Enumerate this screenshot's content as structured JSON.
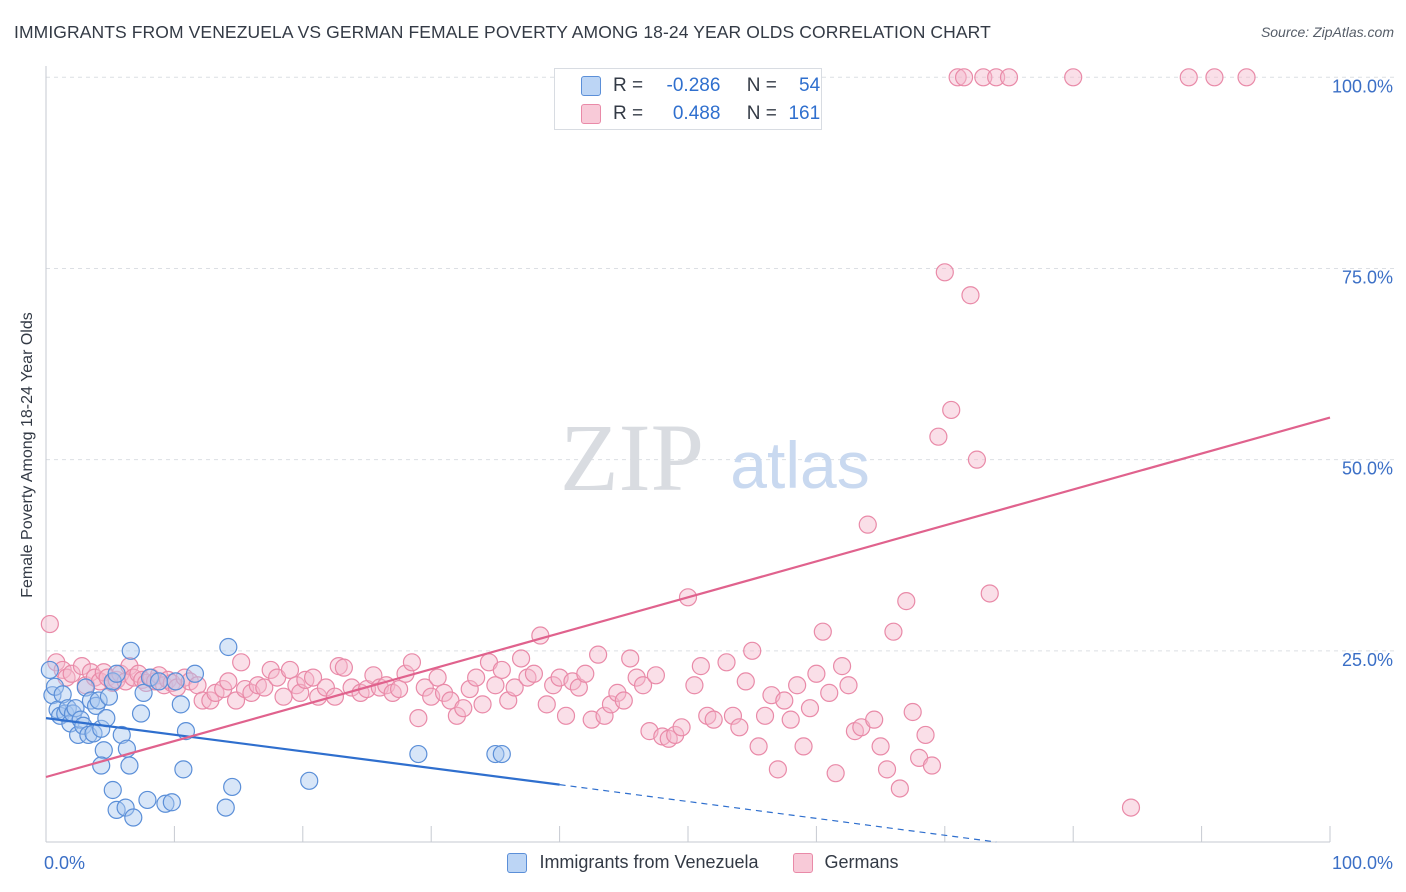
{
  "title": "IMMIGRANTS FROM VENEZUELA VS GERMAN FEMALE POVERTY AMONG 18-24 YEAR OLDS CORRELATION CHART",
  "source": "Source: ZipAtlas.com",
  "watermark": {
    "zip": "ZIP",
    "atlas": "atlas"
  },
  "colors": {
    "blue_fill": "#a9c8f0",
    "blue_stroke": "#5b8fd8",
    "blue_line": "#2f6fce",
    "pink_fill": "#f5b8cb",
    "pink_stroke": "#e98aa8",
    "pink_line": "#e0628d",
    "tick_label": "#3b6fc6",
    "grid": "#dcdfe4"
  },
  "legend": {
    "rows": [
      {
        "r_label": "R =",
        "r_value": "-0.286",
        "n_label": "N =",
        "n_value": "54"
      },
      {
        "r_label": "R =",
        "r_value": "0.488",
        "n_label": "N =",
        "n_value": "161"
      }
    ]
  },
  "chart_data": {
    "type": "scatter",
    "xlabel": "",
    "ylabel": "Female Poverty Among 18-24 Year Olds",
    "xlim": [
      0,
      100
    ],
    "ylim": [
      0,
      102
    ],
    "x_tick_labels": [
      "0.0%",
      "100.0%"
    ],
    "y_tick_labels": [
      "25.0%",
      "50.0%",
      "75.0%",
      "100.0%"
    ],
    "y_ticks": [
      25,
      50,
      75,
      100
    ],
    "grid": "horizontal dashed",
    "legend_position": "top-center",
    "series": [
      {
        "name": "Immigrants from Venezuela",
        "color": "#a9c8f0",
        "r": -0.286,
        "n": 54,
        "trend": {
          "x0": 0,
          "y0": 16.2,
          "x1": 40,
          "y1": 7.5,
          "dashed_to_x": 74,
          "dashed_to_y": 0
        },
        "points": [
          [
            0.3,
            22.5
          ],
          [
            0.5,
            19.2
          ],
          [
            0.7,
            20.3
          ],
          [
            0.9,
            17.3
          ],
          [
            1.1,
            16.5
          ],
          [
            1.3,
            19.3
          ],
          [
            1.5,
            16.8
          ],
          [
            1.7,
            17.5
          ],
          [
            1.9,
            15.5
          ],
          [
            2.1,
            16.8
          ],
          [
            2.3,
            17.5
          ],
          [
            2.5,
            14.0
          ],
          [
            2.7,
            16.0
          ],
          [
            2.9,
            15.2
          ],
          [
            3.1,
            20.2
          ],
          [
            3.3,
            14.0
          ],
          [
            3.5,
            18.5
          ],
          [
            3.7,
            14.2
          ],
          [
            3.9,
            17.8
          ],
          [
            4.1,
            18.5
          ],
          [
            4.3,
            14.8
          ],
          [
            4.5,
            12.0
          ],
          [
            4.3,
            10.0
          ],
          [
            4.7,
            16.2
          ],
          [
            4.9,
            19.0
          ],
          [
            5.2,
            21.0
          ],
          [
            5.5,
            22.0
          ],
          [
            5.2,
            6.8
          ],
          [
            5.5,
            4.2
          ],
          [
            5.9,
            14.0
          ],
          [
            6.2,
            4.5
          ],
          [
            6.3,
            12.2
          ],
          [
            6.5,
            10.0
          ],
          [
            6.6,
            25.0
          ],
          [
            6.8,
            3.2
          ],
          [
            7.4,
            16.8
          ],
          [
            7.6,
            19.5
          ],
          [
            7.9,
            5.5
          ],
          [
            8.1,
            21.5
          ],
          [
            8.8,
            21.0
          ],
          [
            9.3,
            5.0
          ],
          [
            9.8,
            5.2
          ],
          [
            10.1,
            21.0
          ],
          [
            10.5,
            18.0
          ],
          [
            10.7,
            9.5
          ],
          [
            10.9,
            14.5
          ],
          [
            11.6,
            22.0
          ],
          [
            14.0,
            4.5
          ],
          [
            14.2,
            25.5
          ],
          [
            14.5,
            7.2
          ],
          [
            20.5,
            8.0
          ],
          [
            29.0,
            11.5
          ],
          [
            35.0,
            11.5
          ],
          [
            35.5,
            11.5
          ]
        ]
      },
      {
        "name": "Germans",
        "color": "#f5b8cb",
        "r": 0.488,
        "n": 161,
        "trend": {
          "x0": 0,
          "y0": 8.5,
          "x1": 100,
          "y1": 55.5
        },
        "points": [
          [
            0.3,
            28.5
          ],
          [
            0.8,
            23.5
          ],
          [
            1.3,
            22.5
          ],
          [
            1.6,
            21.5
          ],
          [
            2.0,
            22.0
          ],
          [
            2.8,
            23.0
          ],
          [
            3.1,
            20.5
          ],
          [
            3.5,
            22.2
          ],
          [
            3.8,
            21.5
          ],
          [
            4.2,
            21.0
          ],
          [
            4.5,
            22.2
          ],
          [
            4.8,
            21.5
          ],
          [
            5.2,
            20.8
          ],
          [
            5.5,
            21.2
          ],
          [
            5.8,
            22.0
          ],
          [
            6.2,
            21.0
          ],
          [
            6.5,
            23.0
          ],
          [
            6.8,
            21.5
          ],
          [
            7.2,
            22.0
          ],
          [
            7.5,
            21.2
          ],
          [
            7.8,
            20.8
          ],
          [
            8.2,
            21.5
          ],
          [
            8.5,
            21.0
          ],
          [
            8.8,
            21.8
          ],
          [
            9.2,
            20.5
          ],
          [
            9.5,
            21.2
          ],
          [
            9.8,
            20.8
          ],
          [
            10.2,
            20.2
          ],
          [
            10.8,
            21.5
          ],
          [
            11.2,
            21.0
          ],
          [
            11.8,
            20.5
          ],
          [
            12.2,
            18.5
          ],
          [
            12.8,
            18.5
          ],
          [
            13.2,
            19.5
          ],
          [
            13.8,
            20.0
          ],
          [
            14.2,
            21.0
          ],
          [
            14.8,
            18.5
          ],
          [
            15.2,
            23.5
          ],
          [
            15.5,
            20.0
          ],
          [
            16.0,
            19.5
          ],
          [
            16.5,
            20.5
          ],
          [
            17.0,
            20.2
          ],
          [
            17.5,
            22.5
          ],
          [
            18.0,
            21.5
          ],
          [
            18.5,
            19.0
          ],
          [
            19.0,
            22.5
          ],
          [
            19.5,
            20.5
          ],
          [
            19.8,
            19.5
          ],
          [
            20.2,
            21.2
          ],
          [
            20.8,
            21.5
          ],
          [
            21.2,
            19.0
          ],
          [
            21.8,
            20.2
          ],
          [
            22.5,
            19.0
          ],
          [
            22.8,
            23.0
          ],
          [
            23.2,
            22.8
          ],
          [
            23.8,
            20.2
          ],
          [
            24.5,
            19.5
          ],
          [
            25.0,
            20.0
          ],
          [
            25.5,
            21.8
          ],
          [
            26.0,
            20.2
          ],
          [
            26.5,
            20.5
          ],
          [
            27.0,
            19.5
          ],
          [
            27.5,
            20.0
          ],
          [
            28.0,
            22.0
          ],
          [
            28.5,
            23.5
          ],
          [
            29.0,
            16.2
          ],
          [
            29.5,
            20.2
          ],
          [
            30.0,
            19.0
          ],
          [
            30.5,
            21.5
          ],
          [
            31.0,
            19.5
          ],
          [
            31.5,
            18.5
          ],
          [
            32.0,
            16.5
          ],
          [
            32.5,
            17.5
          ],
          [
            33.0,
            20.0
          ],
          [
            33.5,
            21.5
          ],
          [
            34.0,
            18.0
          ],
          [
            34.5,
            23.5
          ],
          [
            35.0,
            20.5
          ],
          [
            35.5,
            22.5
          ],
          [
            36.0,
            18.5
          ],
          [
            36.5,
            20.2
          ],
          [
            37.0,
            24.0
          ],
          [
            37.5,
            21.5
          ],
          [
            38.0,
            22.0
          ],
          [
            38.5,
            27.0
          ],
          [
            39.0,
            18.0
          ],
          [
            39.5,
            20.5
          ],
          [
            40.0,
            21.5
          ],
          [
            40.5,
            16.5
          ],
          [
            41.0,
            21.0
          ],
          [
            41.5,
            20.2
          ],
          [
            42.0,
            22.0
          ],
          [
            42.5,
            16.0
          ],
          [
            43.0,
            24.5
          ],
          [
            43.5,
            16.5
          ],
          [
            44.0,
            18.0
          ],
          [
            44.5,
            19.5
          ],
          [
            45.0,
            18.5
          ],
          [
            45.5,
            24.0
          ],
          [
            46.0,
            21.5
          ],
          [
            46.5,
            20.5
          ],
          [
            47.0,
            14.5
          ],
          [
            47.5,
            21.8
          ],
          [
            48.0,
            13.8
          ],
          [
            48.5,
            13.5
          ],
          [
            49.0,
            14.0
          ],
          [
            49.5,
            15.0
          ],
          [
            50.0,
            32.0
          ],
          [
            50.5,
            20.5
          ],
          [
            51.0,
            23.0
          ],
          [
            51.5,
            16.5
          ],
          [
            52.0,
            16.0
          ],
          [
            53.0,
            23.5
          ],
          [
            53.5,
            16.5
          ],
          [
            54.0,
            15.0
          ],
          [
            54.5,
            21.0
          ],
          [
            55.0,
            25.0
          ],
          [
            55.5,
            12.5
          ],
          [
            56.0,
            16.5
          ],
          [
            56.5,
            19.2
          ],
          [
            57.0,
            9.5
          ],
          [
            57.5,
            18.5
          ],
          [
            58.0,
            16.0
          ],
          [
            58.5,
            20.5
          ],
          [
            59.0,
            12.5
          ],
          [
            59.5,
            17.5
          ],
          [
            60.0,
            22.0
          ],
          [
            60.5,
            27.5
          ],
          [
            61.0,
            19.5
          ],
          [
            61.5,
            9.0
          ],
          [
            62.0,
            23.0
          ],
          [
            62.5,
            20.5
          ],
          [
            63.0,
            14.5
          ],
          [
            63.5,
            15.0
          ],
          [
            64.0,
            41.5
          ],
          [
            64.5,
            16.0
          ],
          [
            65.0,
            12.5
          ],
          [
            65.5,
            9.5
          ],
          [
            66.0,
            27.5
          ],
          [
            66.5,
            7.0
          ],
          [
            67.0,
            31.5
          ],
          [
            67.5,
            17.0
          ],
          [
            68.0,
            11.0
          ],
          [
            68.5,
            14.0
          ],
          [
            69.0,
            10.0
          ],
          [
            69.5,
            53.0
          ],
          [
            70.0,
            74.5
          ],
          [
            70.5,
            56.5
          ],
          [
            71.0,
            100.0
          ],
          [
            71.5,
            100.0
          ],
          [
            72.0,
            71.5
          ],
          [
            72.5,
            50.0
          ],
          [
            73.0,
            100.0
          ],
          [
            73.5,
            32.5
          ],
          [
            74.0,
            100.0
          ],
          [
            75.0,
            100.0
          ],
          [
            80.0,
            100.0
          ],
          [
            84.5,
            4.5
          ],
          [
            89.0,
            100.0
          ],
          [
            91.0,
            100.0
          ],
          [
            93.5,
            100.0
          ]
        ]
      }
    ]
  },
  "bottom_legend": [
    "Immigrants from Venezuela",
    "Germans"
  ]
}
